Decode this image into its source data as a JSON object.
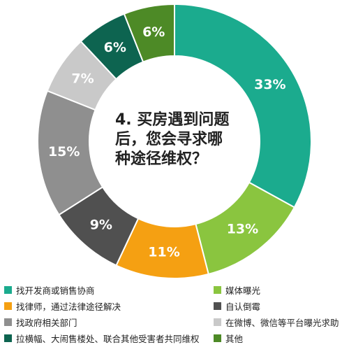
{
  "chart_data": {
    "type": "pie",
    "title_lines": [
      "4. 买房遇到问题",
      "后，您会寻求哪",
      "种途径维权？"
    ],
    "slices": [
      {
        "name": "找开发商或销售协商",
        "value": 33,
        "label": "33%",
        "color": "#1bab8e"
      },
      {
        "name": "媒体曝光",
        "value": 13,
        "label": "13%",
        "color": "#8ac53f"
      },
      {
        "name": "找律师，通过法律途径解决",
        "value": 11,
        "label": "11%",
        "color": "#f5a012"
      },
      {
        "name": "自认倒霉",
        "value": 9,
        "label": "9%",
        "color": "#505050"
      },
      {
        "name": "找政府相关部门",
        "value": 15,
        "label": "15%",
        "color": "#8f8f8f"
      },
      {
        "name": "在微博、微信等平台曝光求助",
        "value": 7,
        "label": "7%",
        "color": "#c9c9c9"
      },
      {
        "name": "拉横幅、大闹售楼处、联合其他受害者共同维权",
        "value": 6,
        "label": "6%",
        "color": "#0d6450"
      },
      {
        "name": "其他",
        "value": 6,
        "label": "6%",
        "color": "#4d8a26"
      }
    ]
  },
  "legend": [
    {
      "label": "找开发商或销售协商",
      "color": "#1bab8e"
    },
    {
      "label": "媒体曝光",
      "color": "#8ac53f"
    },
    {
      "label": "找律师，通过法律途径解决",
      "color": "#f5a012"
    },
    {
      "label": "自认倒霉",
      "color": "#505050"
    },
    {
      "label": "找政府相关部门",
      "color": "#8f8f8f"
    },
    {
      "label": "在微博、微信等平台曝光求助",
      "color": "#c9c9c9"
    },
    {
      "label": "拉横幅、大闹售楼处、联合其他受害者共同维权",
      "color": "#0d6450"
    },
    {
      "label": "其他",
      "color": "#4d8a26"
    }
  ]
}
